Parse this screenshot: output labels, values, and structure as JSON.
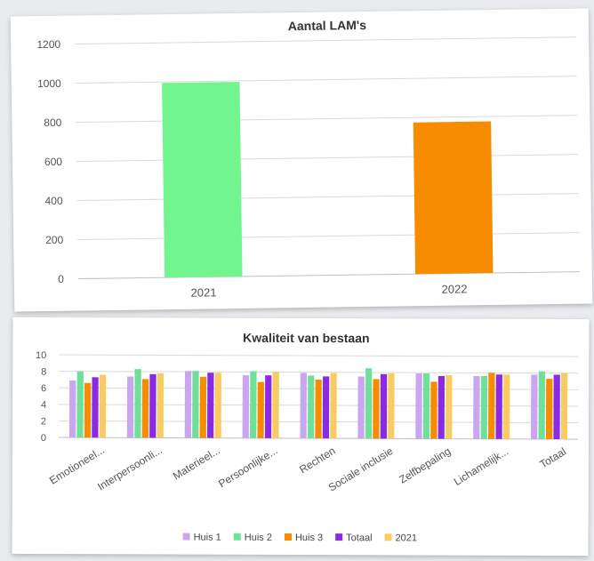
{
  "charts": {
    "lam": {
      "chart_data": {
        "type": "bar",
        "title": "Aantal LAM's",
        "categories": [
          "2021",
          "2022"
        ],
        "values": [
          995,
          775
        ],
        "bar_colors": [
          "#72f58f",
          "#f78c00"
        ],
        "ylim": [
          0,
          1200
        ],
        "yticks": [
          0,
          200,
          400,
          600,
          800,
          1000,
          1200
        ],
        "grid": true,
        "legend": "none"
      }
    },
    "kwaliteit": {
      "chart_data": {
        "type": "bar",
        "title": "Kwaliteit van bestaan",
        "categories": [
          "Emotioneel...",
          "Interpersoonli...",
          "Materieel...",
          "Persoonlijke...",
          "Rechten",
          "Sociale inclusie",
          "Zelfbepaling",
          "Lichamelijk...",
          "Totaal"
        ],
        "series": [
          {
            "name": "Huis 1",
            "color": "#c9a6ef",
            "values": [
              6.9,
              7.4,
              8.1,
              7.6,
              7.9,
              7.5,
              7.9,
              7.6,
              7.8
            ]
          },
          {
            "name": "Huis 2",
            "color": "#6fe09a",
            "values": [
              8.0,
              8.3,
              8.1,
              8.1,
              7.6,
              8.5,
              7.9,
              7.6,
              8.2
            ]
          },
          {
            "name": "Huis 3",
            "color": "#f78c00",
            "values": [
              6.6,
              7.1,
              7.4,
              6.8,
              7.1,
              7.2,
              6.9,
              8.0,
              7.3
            ]
          },
          {
            "name": "Totaal",
            "color": "#8a2be2",
            "values": [
              7.3,
              7.7,
              7.9,
              7.6,
              7.5,
              7.8,
              7.6,
              7.8,
              7.8
            ]
          },
          {
            "name": "2021",
            "color": "#f8cc62",
            "values": [
              7.6,
              7.8,
              7.9,
              8.0,
              7.9,
              7.9,
              7.7,
              7.8,
              8.0
            ]
          }
        ],
        "ylim": [
          0,
          10
        ],
        "yticks": [
          0,
          2,
          4,
          6,
          8,
          10
        ],
        "grid": true,
        "legend": "bottom"
      }
    }
  }
}
